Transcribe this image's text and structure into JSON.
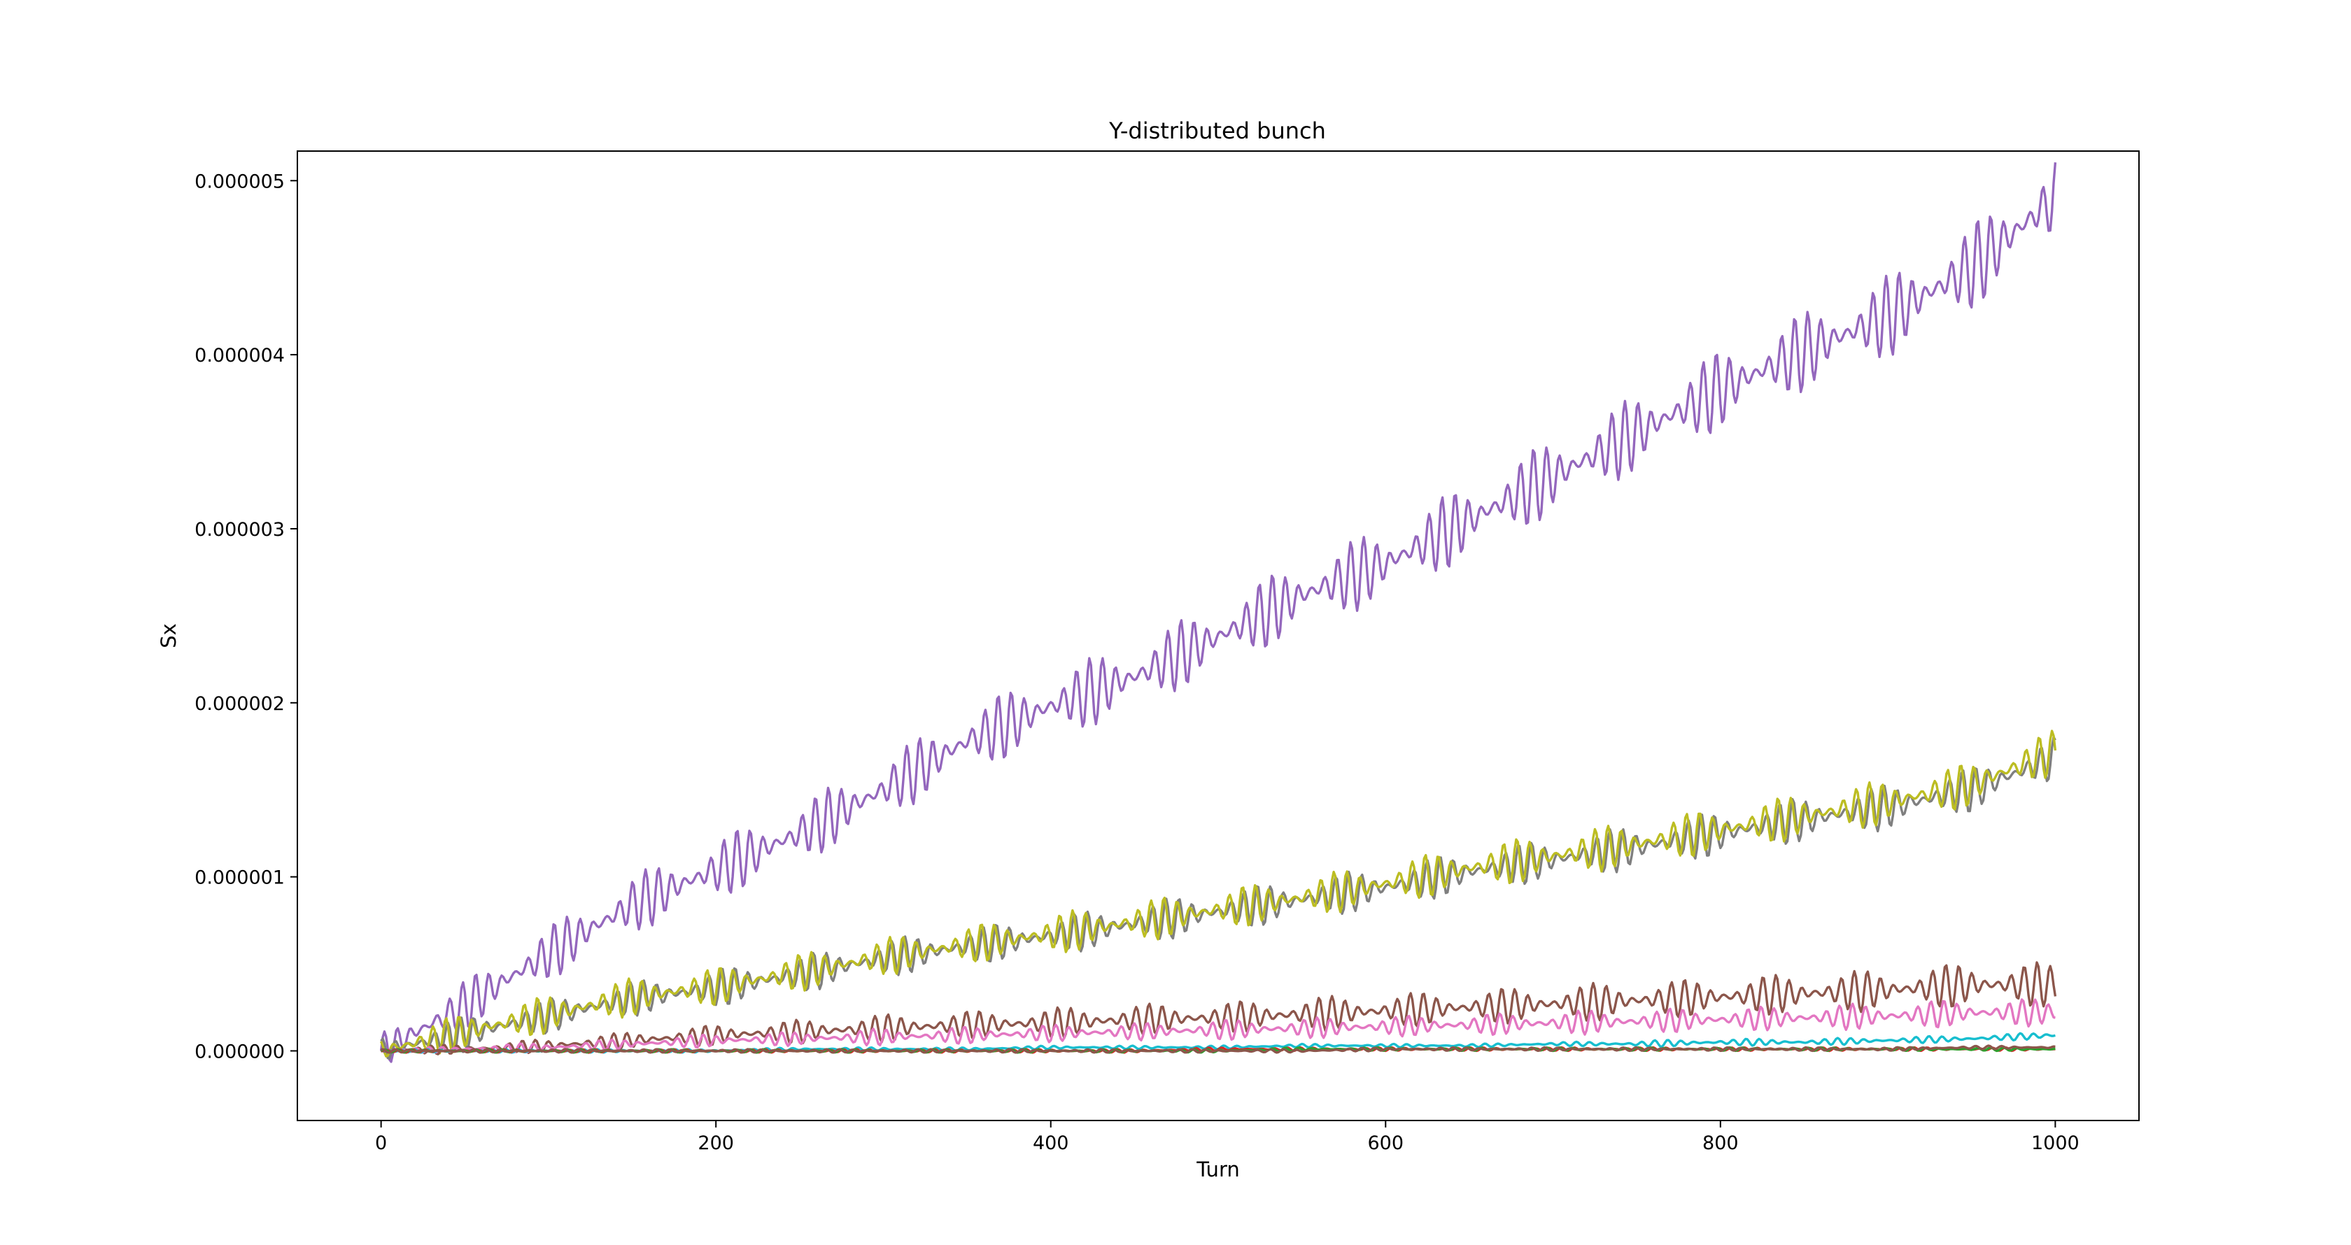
{
  "chart_data": {
    "type": "line",
    "title": "Y-distributed bunch",
    "xlabel": "Turn",
    "ylabel": "Sx",
    "xlim": [
      -50,
      1050
    ],
    "ylim": [
      -4e-07,
      5.17e-06
    ],
    "x_ticks": [
      0,
      200,
      400,
      600,
      800,
      1000
    ],
    "x_tick_labels": [
      "0",
      "200",
      "400",
      "600",
      "800",
      "1000"
    ],
    "y_ticks": [
      0,
      1e-06,
      2e-06,
      3e-06,
      4e-06,
      5e-06
    ],
    "y_tick_labels": [
      "0.000000",
      "0.000001",
      "0.000002",
      "0.000003",
      "0.000004",
      "0.000005"
    ],
    "grid": false,
    "legend": "none",
    "series": [
      {
        "color": "#9467bd",
        "x": [
          0,
          50,
          100,
          150,
          200,
          250,
          300,
          350,
          400,
          450,
          500,
          550,
          600,
          650,
          700,
          750,
          800,
          850,
          900,
          950,
          1000
        ],
        "y": [
          0,
          2.6e-07,
          5.6e-07,
          8.4e-07,
          1.04e-06,
          1.25e-06,
          1.5e-06,
          1.78e-06,
          1.98e-06,
          2.15e-06,
          2.38e-06,
          2.62e-06,
          2.8e-06,
          3.05e-06,
          3.3e-06,
          3.55e-06,
          3.8e-06,
          4.02e-06,
          4.22e-06,
          4.5e-06,
          4.9e-06
        ],
        "oscillation_amplitude": [
          1e-07,
          1.5e-07,
          1.6e-07,
          1.7e-07,
          1.8e-07,
          1.8e-07,
          1.8e-07,
          1.9e-07,
          2e-07,
          2e-07,
          2e-07,
          2.1e-07,
          2.1e-07,
          2.2e-07,
          2.2e-07,
          2.2e-07,
          2.3e-07,
          2.3e-07,
          2.4e-07,
          2.5e-07,
          2.5e-07
        ]
      },
      {
        "color": "#7f7f7f",
        "x": [
          0,
          50,
          100,
          150,
          200,
          250,
          300,
          350,
          400,
          450,
          500,
          550,
          600,
          650,
          700,
          750,
          800,
          850,
          900,
          950,
          1000
        ],
        "y": [
          0,
          1e-07,
          2e-07,
          3e-07,
          3.6e-07,
          4.4e-07,
          5.3e-07,
          6e-07,
          6.6e-07,
          7.3e-07,
          8e-07,
          8.7e-07,
          9.4e-07,
          1.03e-06,
          1.1e-06,
          1.17e-06,
          1.25e-06,
          1.33e-06,
          1.4e-06,
          1.5e-06,
          1.68e-06
        ],
        "oscillation_amplitude": [
          8e-08,
          1e-07,
          1e-07,
          1e-07,
          1.1e-07,
          1.1e-07,
          1.1e-07,
          1.1e-07,
          1.1e-07,
          1.2e-07,
          1.2e-07,
          1.2e-07,
          1.2e-07,
          1.2e-07,
          1.2e-07,
          1.3e-07,
          1.3e-07,
          1.3e-07,
          1.3e-07,
          1.3e-07,
          1.3e-07
        ]
      },
      {
        "color": "#bcbd22",
        "x": [
          0,
          50,
          100,
          150,
          200,
          250,
          300,
          350,
          400,
          450,
          500,
          550,
          600,
          650,
          700,
          750,
          800,
          850,
          900,
          950,
          1000
        ],
        "y": [
          0,
          1.1e-07,
          2.1e-07,
          3.1e-07,
          3.7e-07,
          4.5e-07,
          5.4e-07,
          6.1e-07,
          6.7e-07,
          7.4e-07,
          8.1e-07,
          8.8e-07,
          9.6e-07,
          1.05e-06,
          1.12e-06,
          1.19e-06,
          1.27e-06,
          1.35e-06,
          1.43e-06,
          1.53e-06,
          1.72e-06
        ],
        "oscillation_amplitude": [
          9e-08,
          1.1e-07,
          1.1e-07,
          1.1e-07,
          1.1e-07,
          1.1e-07,
          1.1e-07,
          1.1e-07,
          1.2e-07,
          1.2e-07,
          1.2e-07,
          1.2e-07,
          1.2e-07,
          1.3e-07,
          1.3e-07,
          1.3e-07,
          1.3e-07,
          1.3e-07,
          1.3e-07,
          1.3e-07,
          1.3e-07
        ]
      },
      {
        "color": "#8c564b",
        "x": [
          0,
          50,
          100,
          150,
          200,
          250,
          300,
          350,
          400,
          450,
          500,
          550,
          600,
          650,
          700,
          750,
          800,
          850,
          900,
          950,
          1000
        ],
        "y": [
          0,
          1e-08,
          3e-08,
          6e-08,
          9e-08,
          1.1e-07,
          1.3e-07,
          1.5e-07,
          1.6e-07,
          1.8e-07,
          1.9e-07,
          2.1e-07,
          2.3e-07,
          2.5e-07,
          2.7e-07,
          2.9e-07,
          3.1e-07,
          3.3e-07,
          3.5e-07,
          3.8e-07,
          3.8e-07
        ],
        "oscillation_amplitude": [
          2e-08,
          3e-08,
          4e-08,
          5e-08,
          6e-08,
          7e-08,
          8e-08,
          8e-08,
          9e-08,
          9e-08,
          9e-08,
          1e-07,
          1e-07,
          1e-07,
          1.1e-07,
          1.1e-07,
          1.1e-07,
          1.2e-07,
          1.2e-07,
          1.3e-07,
          1.3e-07
        ]
      },
      {
        "color": "#e377c2",
        "x": [
          0,
          50,
          100,
          150,
          200,
          250,
          300,
          350,
          400,
          450,
          500,
          550,
          600,
          650,
          700,
          750,
          800,
          850,
          900,
          950,
          1000
        ],
        "y": [
          0,
          1e-08,
          2e-08,
          4e-08,
          6e-08,
          7e-08,
          8e-08,
          9e-08,
          1e-07,
          1.1e-07,
          1.2e-07,
          1.3e-07,
          1.4e-07,
          1.5e-07,
          1.6e-07,
          1.7e-07,
          1.8e-07,
          1.9e-07,
          2e-07,
          2.2e-07,
          2.2e-07
        ],
        "oscillation_amplitude": [
          1e-08,
          2e-08,
          3e-08,
          3e-08,
          4e-08,
          4e-08,
          5e-08,
          5e-08,
          5e-08,
          5e-08,
          6e-08,
          6e-08,
          6e-08,
          6e-08,
          7e-08,
          7e-08,
          7e-08,
          7e-08,
          8e-08,
          8e-08,
          8e-08
        ]
      },
      {
        "color": "#17becf",
        "x": [
          0,
          50,
          100,
          150,
          200,
          250,
          300,
          350,
          400,
          450,
          500,
          550,
          600,
          650,
          700,
          750,
          800,
          850,
          900,
          950,
          1000
        ],
        "y": [
          0,
          0,
          0,
          0,
          0,
          1e-08,
          1e-08,
          1e-08,
          2e-08,
          2e-08,
          2e-08,
          3e-08,
          3e-08,
          3e-08,
          4e-08,
          4e-08,
          5e-08,
          5e-08,
          6e-08,
          7e-08,
          9e-08
        ],
        "oscillation_amplitude": [
          1e-08,
          1e-08,
          1e-08,
          1e-08,
          1e-08,
          1e-08,
          1e-08,
          1e-08,
          1e-08,
          1e-08,
          1e-08,
          1e-08,
          1e-08,
          1e-08,
          1e-08,
          2e-08,
          2e-08,
          2e-08,
          2e-08,
          2e-08,
          2e-08
        ]
      },
      {
        "color": "#d62728",
        "x": [
          0,
          50,
          100,
          150,
          200,
          250,
          300,
          350,
          400,
          450,
          500,
          550,
          600,
          650,
          700,
          750,
          800,
          850,
          900,
          950,
          1000
        ],
        "y": [
          0,
          0,
          0,
          0,
          0,
          0,
          0,
          0,
          0,
          0,
          1e-08,
          1e-08,
          1e-08,
          1e-08,
          1e-08,
          1e-08,
          1e-08,
          1e-08,
          1e-08,
          1e-08,
          1e-08
        ],
        "oscillation_amplitude": [
          1e-08,
          1e-08,
          1e-08,
          1e-08,
          1e-08,
          1e-08,
          1e-08,
          1e-08,
          1e-08,
          1e-08,
          1e-08,
          1e-08,
          1e-08,
          1e-08,
          1e-08,
          1e-08,
          1e-08,
          1e-08,
          1e-08,
          1e-08,
          1e-08
        ]
      },
      {
        "color": "#2ca02c",
        "x": [
          0,
          50,
          100,
          150,
          200,
          250,
          300,
          350,
          400,
          450,
          500,
          550,
          600,
          650,
          700,
          750,
          800,
          850,
          900,
          950,
          1000
        ],
        "y": [
          0,
          0,
          0,
          0,
          0,
          0,
          0,
          0,
          0,
          0,
          0,
          1e-08,
          1e-08,
          1e-08,
          1e-08,
          1e-08,
          1e-08,
          1e-08,
          1e-08,
          1e-08,
          1e-08
        ],
        "oscillation_amplitude": [
          1e-08,
          1e-08,
          1e-08,
          1e-08,
          1e-08,
          1e-08,
          1e-08,
          1e-08,
          1e-08,
          1e-08,
          1e-08,
          1e-08,
          1e-08,
          1e-08,
          1e-08,
          1e-08,
          1e-08,
          1e-08,
          1e-08,
          1e-08,
          1e-08
        ]
      },
      {
        "color": "#8c564b",
        "x": [
          0,
          50,
          100,
          150,
          200,
          250,
          300,
          350,
          400,
          450,
          500,
          550,
          600,
          650,
          700,
          750,
          800,
          850,
          900,
          950,
          1000
        ],
        "y": [
          0,
          0,
          0,
          0,
          0,
          0,
          0,
          0,
          0,
          0,
          0,
          0,
          1e-08,
          1e-08,
          1e-08,
          1e-08,
          1e-08,
          1e-08,
          1e-08,
          2e-08,
          2e-08
        ],
        "oscillation_amplitude": [
          1e-08,
          1e-08,
          1e-08,
          1e-08,
          1e-08,
          1e-08,
          1e-08,
          1e-08,
          1e-08,
          1e-08,
          1e-08,
          1e-08,
          1e-08,
          1e-08,
          1e-08,
          1e-08,
          1e-08,
          1e-08,
          1e-08,
          1e-08,
          1e-08
        ]
      }
    ]
  }
}
